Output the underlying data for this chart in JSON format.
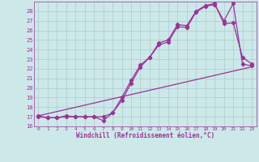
{
  "line1_x": [
    0,
    1,
    2,
    3,
    4,
    5,
    6,
    7,
    8,
    9,
    10,
    11,
    12,
    13,
    14,
    15,
    16,
    17,
    18,
    19,
    20,
    21,
    22,
    23
  ],
  "line1_y": [
    17.1,
    16.9,
    16.9,
    17.1,
    17.0,
    17.0,
    17.0,
    16.6,
    17.4,
    19.0,
    20.8,
    22.4,
    23.2,
    24.7,
    25.0,
    26.6,
    26.5,
    28.0,
    28.6,
    28.8,
    26.7,
    26.8,
    23.2,
    22.5
  ],
  "line2_x": [
    0,
    1,
    2,
    3,
    4,
    5,
    6,
    7,
    8,
    9,
    10,
    11,
    12,
    13,
    14,
    15,
    16,
    17,
    18,
    19,
    20,
    21,
    22,
    23
  ],
  "line2_y": [
    17.0,
    16.9,
    16.9,
    17.0,
    17.0,
    17.0,
    17.0,
    17.0,
    17.4,
    18.7,
    20.5,
    22.2,
    23.2,
    24.5,
    24.8,
    26.4,
    26.3,
    27.9,
    28.5,
    28.7,
    27.0,
    28.8,
    22.5,
    22.3
  ],
  "line3_x": [
    0,
    23
  ],
  "line3_y": [
    17.1,
    22.2
  ],
  "color": "#993399",
  "bg_color": "#cce8e8",
  "grid_color": "#aacccc",
  "xlim": [
    -0.5,
    23.5
  ],
  "ylim": [
    16,
    29
  ],
  "yticks": [
    16,
    17,
    18,
    19,
    20,
    21,
    22,
    23,
    24,
    25,
    26,
    27,
    28
  ],
  "xticks": [
    0,
    1,
    2,
    3,
    4,
    5,
    6,
    7,
    8,
    9,
    10,
    11,
    12,
    13,
    14,
    15,
    16,
    17,
    18,
    19,
    20,
    21,
    22,
    23
  ],
  "xlabel": "Windchill (Refroidissement éolien,°C)",
  "marker": "D",
  "markersize": 2.2,
  "linewidth": 0.9
}
